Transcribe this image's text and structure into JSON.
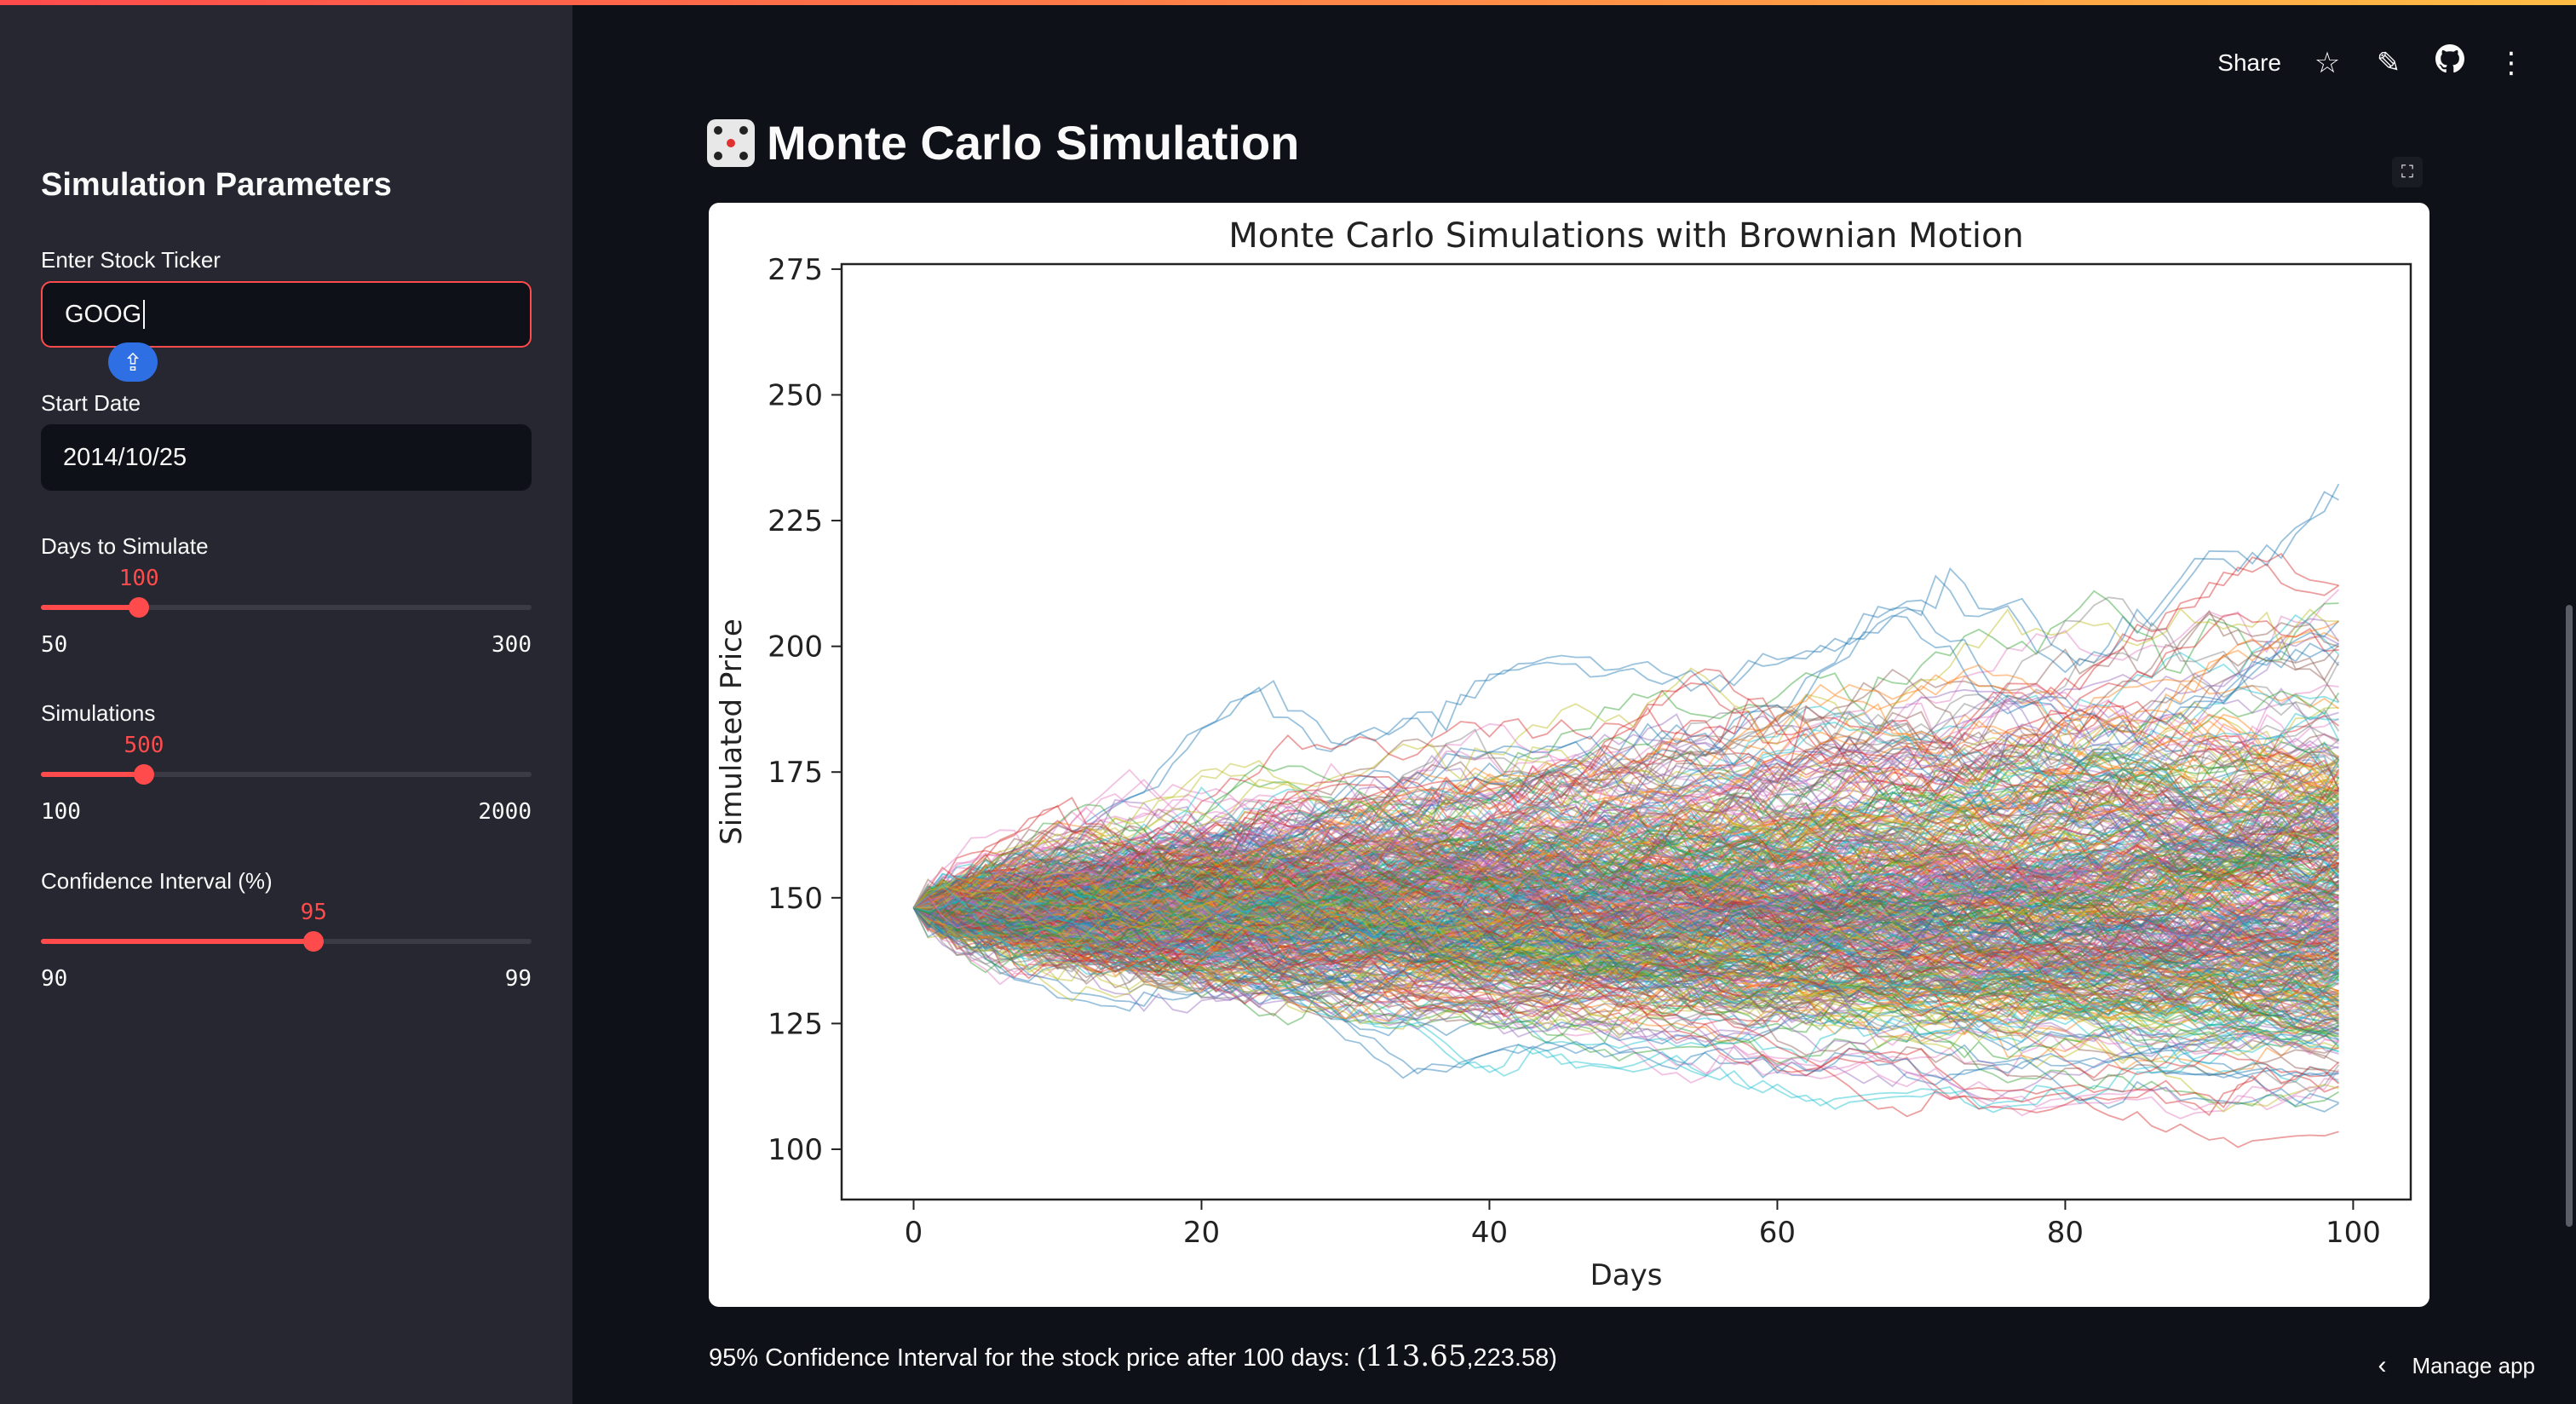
{
  "sidebar": {
    "title": "Simulation Parameters",
    "ticker": {
      "label": "Enter Stock Ticker",
      "value": "GOOG"
    },
    "start_date": {
      "label": "Start Date",
      "value": "2014/10/25"
    },
    "days": {
      "label": "Days to Simulate",
      "value": "100",
      "min": "50",
      "max": "300",
      "fraction": 0.2
    },
    "simulations": {
      "label": "Simulations",
      "value": "500",
      "min": "100",
      "max": "2000",
      "fraction": 0.21
    },
    "confidence": {
      "label": "Confidence Interval (%)",
      "value": "95",
      "min": "90",
      "max": "99",
      "fraction": 0.556
    }
  },
  "header": {
    "title": "Monte Carlo Simulation",
    "share_label": "Share",
    "icons": [
      "star-icon",
      "pencil-icon",
      "github-icon",
      "more-icon"
    ]
  },
  "result": {
    "prefix": "95% Confidence Interval for the stock price after 100 days: (",
    "low": "113.65",
    "separator": ",",
    "high": "223.58",
    "suffix": ")"
  },
  "footer": {
    "manage_label": "Manage app"
  },
  "colors": {
    "accent": "#ff4b4b",
    "sidebar_bg": "#262730",
    "main_bg": "#0e1117"
  },
  "chart_data": {
    "type": "line",
    "title": "Monte Carlo Simulations with Brownian Motion",
    "xlabel": "Days",
    "ylabel": "Simulated Price",
    "xlim": [
      -5,
      104
    ],
    "ylim": [
      90,
      276
    ],
    "xticks": [
      "0",
      "20",
      "40",
      "60",
      "80",
      "100"
    ],
    "yticks": [
      "100",
      "125",
      "150",
      "175",
      "200",
      "225",
      "250",
      "275"
    ],
    "start_price": 148,
    "n_days": 100,
    "n_series": 500,
    "grid": false,
    "legend": "none"
  }
}
